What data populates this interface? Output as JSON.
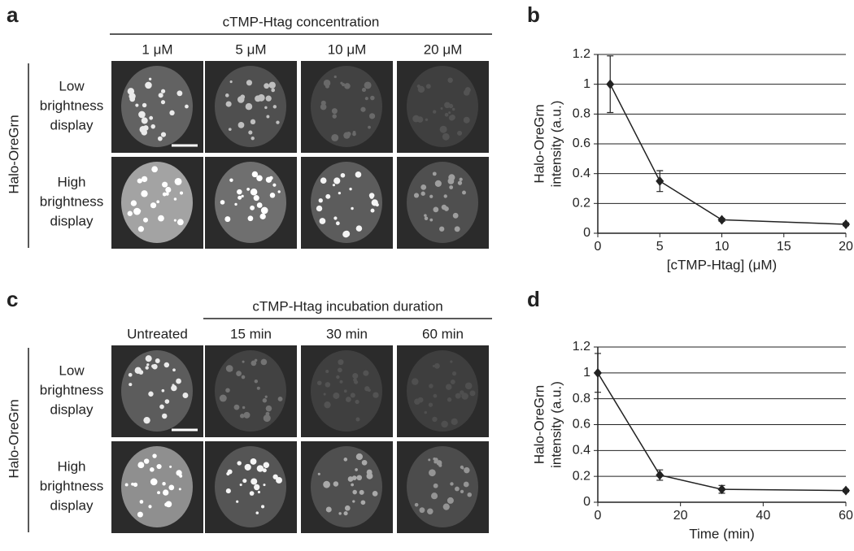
{
  "panels": [
    {
      "letter": "a",
      "header": "cTMP-Htag concentration",
      "columns": [
        "1 μM",
        "5 μM",
        "10 μM",
        "20 μM"
      ],
      "row_labels": [
        [
          "Low",
          "brightness",
          "display"
        ],
        [
          "High",
          "brightness",
          "display"
        ]
      ],
      "side_label": "Halo-OreGrn"
    },
    {
      "letter": "c",
      "header": "cTMP-Htag incubation duration",
      "columns": [
        "Untreated",
        "15 min",
        "30 min",
        "60 min"
      ],
      "row_labels": [
        [
          "Low",
          "brightness",
          "display"
        ],
        [
          "High",
          "brightness",
          "display"
        ]
      ],
      "side_label": "Halo-OreGrn"
    }
  ],
  "chart_data": [
    {
      "type": "line",
      "panel_label": "b",
      "ylabel": [
        "Halo-OreGrn",
        "intensity (a.u.)"
      ],
      "xlabel": "[cTMP-Htag] (μM)",
      "x": [
        1,
        5,
        10,
        20
      ],
      "values": [
        1,
        0.35,
        0.09,
        0.06
      ],
      "errors": [
        0.19,
        0.07,
        0.01,
        0.01
      ],
      "color": "#222222",
      "xlim": [
        0,
        20
      ],
      "xticks": [
        0,
        5,
        10,
        15,
        20
      ],
      "ylim": [
        0,
        1.2
      ],
      "yticks": [
        0,
        0.2,
        0.4,
        0.6,
        0.8,
        1,
        1.2
      ],
      "grid": true
    },
    {
      "type": "line",
      "panel_label": "d",
      "ylabel": [
        "Halo-OreGrn",
        "intensity (a.u.)"
      ],
      "xlabel": "Time (min)",
      "x": [
        0,
        15,
        30,
        60
      ],
      "values": [
        1,
        0.21,
        0.1,
        0.09
      ],
      "errors": [
        0.15,
        0.04,
        0.03,
        0.01
      ],
      "color": "#222222",
      "xlim": [
        0,
        60
      ],
      "xticks": [
        0,
        20,
        40,
        60
      ],
      "ylim": [
        0,
        1.2
      ],
      "yticks": [
        0,
        0.2,
        0.4,
        0.6,
        0.8,
        1,
        1.2
      ],
      "grid": true
    }
  ]
}
